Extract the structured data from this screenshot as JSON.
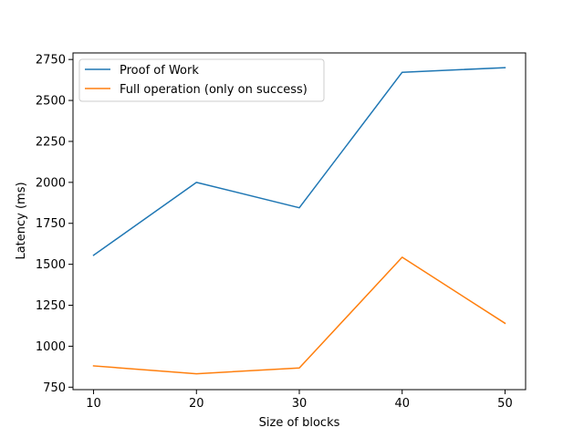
{
  "chart_data": {
    "type": "line",
    "title": "",
    "xlabel": "Size of blocks",
    "ylabel": "Latency (ms)",
    "x": [
      10,
      20,
      30,
      40,
      50
    ],
    "xticks": [
      "10",
      "20",
      "30",
      "40",
      "50"
    ],
    "yticks": [
      "750",
      "1000",
      "1250",
      "1500",
      "1750",
      "2000",
      "2250",
      "2500",
      "2750"
    ],
    "ytick_values": [
      750,
      1000,
      1250,
      1500,
      1750,
      2000,
      2250,
      2500,
      2750
    ],
    "xlim": [
      8,
      52
    ],
    "ylim": [
      735,
      2790
    ],
    "grid": false,
    "legend_position": "top-left",
    "series": [
      {
        "name": "Proof of Work",
        "color": "#1f77b4",
        "values": [
          1555,
          2000,
          1845,
          2672,
          2700
        ]
      },
      {
        "name": "Full operation (only on success)",
        "color": "#ff7f0e",
        "values": [
          880,
          832,
          867,
          1543,
          1140
        ]
      }
    ]
  }
}
